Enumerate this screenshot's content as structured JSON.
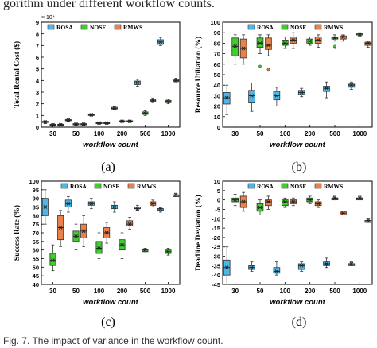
{
  "header_fragment": "gorithm under different workflow counts.",
  "caption": "Fig. 7. The impact of variance in the workflow count.",
  "colors": {
    "ROSA": "#4db8e8",
    "NOSF": "#3ecf2a",
    "RMWS": "#e8824a"
  },
  "chart_data": [
    {
      "type": "box",
      "panel_label": "(a)",
      "xlabel": "workflow count",
      "ylabel": "Total Rental Cost ($)",
      "multiplier": "× 10⁴",
      "categories": [
        "30",
        "50",
        "100",
        "200",
        "500",
        "1000"
      ],
      "ylim": [
        0,
        9
      ],
      "yticks": [
        0,
        1,
        2,
        3,
        4,
        5,
        6,
        7,
        8,
        9
      ],
      "legend": [
        "ROSA",
        "NOSF",
        "RMWS"
      ],
      "legend_position": "top-left",
      "series": [
        {
          "name": "ROSA",
          "boxes": [
            {
              "min": 0.3,
              "q1": 0.4,
              "med": 0.45,
              "q3": 0.5,
              "max": 0.55,
              "mean": 0.45
            },
            {
              "min": 0.5,
              "q1": 0.55,
              "med": 0.6,
              "q3": 0.65,
              "max": 0.7,
              "mean": 0.6
            },
            {
              "min": 0.95,
              "q1": 1.0,
              "med": 1.05,
              "q3": 1.1,
              "max": 1.15,
              "mean": 1.05
            },
            {
              "min": 1.5,
              "q1": 1.55,
              "med": 1.6,
              "q3": 1.7,
              "max": 1.75,
              "mean": 1.6
            },
            {
              "min": 3.5,
              "q1": 3.65,
              "med": 3.8,
              "q3": 3.95,
              "max": 4.1,
              "mean": 3.8
            },
            {
              "min": 7.0,
              "q1": 7.1,
              "med": 7.3,
              "q3": 7.5,
              "max": 7.7,
              "mean": 7.3
            }
          ]
        },
        {
          "name": "NOSF",
          "boxes": [
            {
              "min": 0.1,
              "q1": 0.15,
              "med": 0.2,
              "q3": 0.25,
              "max": 0.3,
              "mean": 0.2
            },
            {
              "min": 0.15,
              "q1": 0.2,
              "med": 0.25,
              "q3": 0.3,
              "max": 0.35,
              "mean": 0.25
            },
            {
              "min": 0.25,
              "q1": 0.3,
              "med": 0.35,
              "q3": 0.4,
              "max": 0.45,
              "mean": 0.35
            },
            {
              "min": 0.4,
              "q1": 0.45,
              "med": 0.5,
              "q3": 0.55,
              "max": 0.6,
              "mean": 0.5
            },
            {
              "min": 1.0,
              "q1": 1.1,
              "med": 1.2,
              "q3": 1.3,
              "max": 1.4,
              "mean": 1.2
            },
            {
              "min": 2.0,
              "q1": 2.1,
              "med": 2.2,
              "q3": 2.3,
              "max": 2.4,
              "mean": 2.2
            }
          ]
        },
        {
          "name": "RMWS",
          "boxes": [
            {
              "min": 0.1,
              "q1": 0.15,
              "med": 0.2,
              "q3": 0.25,
              "max": 0.3,
              "mean": 0.2
            },
            {
              "min": 0.15,
              "q1": 0.2,
              "med": 0.25,
              "q3": 0.3,
              "max": 0.35,
              "mean": 0.25
            },
            {
              "min": 0.25,
              "q1": 0.3,
              "med": 0.35,
              "q3": 0.4,
              "max": 0.45,
              "mean": 0.35
            },
            {
              "min": 0.4,
              "q1": 0.45,
              "med": 0.5,
              "q3": 0.55,
              "max": 0.6,
              "mean": 0.5
            },
            {
              "min": 2.1,
              "q1": 2.2,
              "med": 2.3,
              "q3": 2.4,
              "max": 2.5,
              "mean": 2.3
            },
            {
              "min": 3.8,
              "q1": 3.9,
              "med": 4.0,
              "q3": 4.1,
              "max": 4.2,
              "mean": 4.0
            }
          ]
        }
      ]
    },
    {
      "type": "box",
      "panel_label": "(b)",
      "xlabel": "workflow count",
      "ylabel": "Resource Utiliation (%)",
      "categories": [
        "30",
        "50",
        "100",
        "200",
        "500",
        "1000"
      ],
      "ylim": [
        0,
        100
      ],
      "yticks": [
        0,
        10,
        20,
        30,
        40,
        50,
        60,
        70,
        80,
        90,
        100
      ],
      "legend": [
        "ROSA",
        "NOSF",
        "RMWS"
      ],
      "legend_position": "top-center",
      "series": [
        {
          "name": "ROSA",
          "boxes": [
            {
              "min": 12,
              "q1": 22,
              "med": 28,
              "q3": 33,
              "max": 40,
              "mean": 28
            },
            {
              "min": 15,
              "q1": 23,
              "med": 30,
              "q3": 35,
              "max": 42,
              "mean": 30
            },
            {
              "min": 20,
              "q1": 26,
              "med": 30,
              "q3": 34,
              "max": 38,
              "mean": 30
            },
            {
              "min": 29,
              "q1": 31,
              "med": 33,
              "q3": 35,
              "max": 37,
              "mean": 33
            },
            {
              "min": 28,
              "q1": 34,
              "med": 37,
              "q3": 39,
              "max": 43,
              "mean": 37
            },
            {
              "min": 36,
              "q1": 38,
              "med": 40,
              "q3": 41,
              "max": 43,
              "mean": 40
            }
          ]
        },
        {
          "name": "NOSF",
          "boxes": [
            {
              "min": 60,
              "q1": 68,
              "med": 77,
              "q3": 85,
              "max": 88,
              "mean": 77
            },
            {
              "min": 70,
              "q1": 76,
              "med": 80,
              "q3": 85,
              "max": 88,
              "mean": 80,
              "outliers": [
                58
              ]
            },
            {
              "min": 75,
              "q1": 78,
              "med": 80,
              "q3": 83,
              "max": 86,
              "mean": 80
            },
            {
              "min": 78,
              "q1": 80,
              "med": 82,
              "q3": 84,
              "max": 86,
              "mean": 82
            },
            {
              "min": 82,
              "q1": 84,
              "med": 85,
              "q3": 86,
              "max": 88,
              "mean": 85,
              "outliers": [
                76,
                77
              ]
            },
            {
              "min": 87,
              "q1": 88,
              "med": 88,
              "q3": 89,
              "max": 90,
              "mean": 88
            }
          ]
        },
        {
          "name": "RMWS",
          "boxes": [
            {
              "min": 60,
              "q1": 66,
              "med": 75,
              "q3": 84,
              "max": 88,
              "mean": 75
            },
            {
              "min": 68,
              "q1": 74,
              "med": 78,
              "q3": 85,
              "max": 88,
              "mean": 78,
              "outliers": [
                55
              ]
            },
            {
              "min": 75,
              "q1": 80,
              "med": 83,
              "q3": 86,
              "max": 90,
              "mean": 83
            },
            {
              "min": 76,
              "q1": 80,
              "med": 83,
              "q3": 86,
              "max": 88,
              "mean": 83
            },
            {
              "min": 82,
              "q1": 84,
              "med": 86,
              "q3": 87,
              "max": 88,
              "mean": 86
            },
            {
              "min": 76,
              "q1": 78,
              "med": 80,
              "q3": 81,
              "max": 82,
              "mean": 80
            }
          ]
        }
      ]
    },
    {
      "type": "box",
      "panel_label": "(c)",
      "xlabel": "workflow count",
      "ylabel": "Success Rate (%)",
      "categories": [
        "30",
        "50",
        "100",
        "200",
        "500",
        "1000"
      ],
      "ylim": [
        40,
        100
      ],
      "yticks": [
        40,
        45,
        50,
        55,
        60,
        65,
        70,
        75,
        80,
        85,
        90,
        95,
        100
      ],
      "legend": [
        "ROSA",
        "NOSF",
        "RMWS"
      ],
      "legend_position": "top-center",
      "series": [
        {
          "name": "ROSA",
          "boxes": [
            {
              "min": 75,
              "q1": 80,
              "med": 85,
              "q3": 90,
              "max": 95,
              "mean": 85
            },
            {
              "min": 82,
              "q1": 85,
              "med": 87,
              "q3": 89,
              "max": 91,
              "mean": 87
            },
            {
              "min": 84,
              "q1": 86,
              "med": 87,
              "q3": 88,
              "max": 90,
              "mean": 87
            },
            {
              "min": 82,
              "q1": 84,
              "med": 85,
              "q3": 86,
              "max": 88,
              "mean": 85
            },
            {
              "min": 83,
              "q1": 84,
              "med": 84,
              "q3": 85,
              "max": 86,
              "mean": 84
            },
            {
              "min": 82,
              "q1": 83,
              "med": 84,
              "q3": 84,
              "max": 85,
              "mean": 84
            }
          ]
        },
        {
          "name": "NOSF",
          "boxes": [
            {
              "min": 48,
              "q1": 51,
              "med": 54,
              "q3": 58,
              "max": 63,
              "mean": 54
            },
            {
              "min": 60,
              "q1": 65,
              "med": 68,
              "q3": 71,
              "max": 75,
              "mean": 68
            },
            {
              "min": 55,
              "q1": 58,
              "med": 61,
              "q3": 65,
              "max": 70,
              "mean": 61
            },
            {
              "min": 55,
              "q1": 60,
              "med": 63,
              "q3": 66,
              "max": 70,
              "mean": 63
            },
            {
              "min": 59,
              "q1": 59,
              "med": 60,
              "q3": 60,
              "max": 61,
              "mean": 60
            },
            {
              "min": 57,
              "q1": 58,
              "med": 59,
              "q3": 60,
              "max": 61,
              "mean": 59
            }
          ]
        },
        {
          "name": "RMWS",
          "boxes": [
            {
              "min": 62,
              "q1": 66,
              "med": 73,
              "q3": 80,
              "max": 83,
              "mean": 73
            },
            {
              "min": 62,
              "q1": 67,
              "med": 71,
              "q3": 75,
              "max": 80,
              "mean": 71
            },
            {
              "min": 64,
              "q1": 67,
              "med": 70,
              "q3": 73,
              "max": 76,
              "mean": 70
            },
            {
              "min": 72,
              "q1": 74,
              "med": 75,
              "q3": 77,
              "max": 79,
              "mean": 75
            },
            {
              "min": 85,
              "q1": 86,
              "med": 87,
              "q3": 88,
              "max": 89,
              "mean": 87
            },
            {
              "min": 91,
              "q1": 91,
              "med": 92,
              "q3": 92,
              "max": 93,
              "mean": 92
            }
          ]
        }
      ]
    },
    {
      "type": "box",
      "panel_label": "(d)",
      "xlabel": "workflow count",
      "ylabel": "Deadline Deviation (%)",
      "categories": [
        "30",
        "50",
        "100",
        "200",
        "500",
        "1000"
      ],
      "ylim": [
        -45,
        10
      ],
      "yticks": [
        -45,
        -40,
        -35,
        -30,
        -25,
        -20,
        -15,
        -10,
        -5,
        0,
        5,
        10
      ],
      "legend": [
        "ROSA",
        "NOSF",
        "RMWS"
      ],
      "legend_position": "top-center",
      "series": [
        {
          "name": "ROSA",
          "boxes": [
            {
              "min": -45,
              "q1": -40,
              "med": -36,
              "q3": -32,
              "max": -25,
              "mean": -36
            },
            {
              "min": -38,
              "q1": -37,
              "med": -36,
              "q3": -35,
              "max": -33,
              "mean": -36
            },
            {
              "min": -40,
              "q1": -39,
              "med": -38,
              "q3": -36,
              "max": -33,
              "mean": -38
            },
            {
              "min": -38,
              "q1": -37,
              "med": -35,
              "q3": -34,
              "max": -33,
              "mean": -35
            },
            {
              "min": -36,
              "q1": -35,
              "med": -34,
              "q3": -33,
              "max": -31,
              "mean": -34
            },
            {
              "min": -35,
              "q1": -35,
              "med": -34,
              "q3": -34,
              "max": -33,
              "mean": -34
            }
          ]
        },
        {
          "name": "NOSF",
          "boxes": [
            {
              "min": -3,
              "q1": -1,
              "med": 0,
              "q3": 1,
              "max": 3,
              "mean": 0
            },
            {
              "min": -8,
              "q1": -6,
              "med": -4,
              "q3": -2,
              "max": 0,
              "mean": -4
            },
            {
              "min": -4,
              "q1": -3,
              "med": -1,
              "q3": 0,
              "max": 1,
              "mean": -1
            },
            {
              "min": -2,
              "q1": -1,
              "med": 0,
              "q3": 1,
              "max": 2,
              "mean": 0
            },
            {
              "min": 0,
              "q1": 0,
              "med": 1,
              "q3": 1,
              "max": 2,
              "mean": 1
            },
            {
              "min": 0,
              "q1": 0,
              "med": 1,
              "q3": 1,
              "max": 2,
              "mean": 1
            }
          ]
        },
        {
          "name": "RMWS",
          "boxes": [
            {
              "min": -6,
              "q1": -4,
              "med": -1,
              "q3": 2,
              "max": 4,
              "mean": -1
            },
            {
              "min": -5,
              "q1": -3,
              "med": -1,
              "q3": 0,
              "max": 2,
              "mean": -1
            },
            {
              "min": -3,
              "q1": -2,
              "med": -1,
              "q3": 0,
              "max": 1,
              "mean": -1
            },
            {
              "min": -4,
              "q1": -3,
              "med": -2,
              "q3": -1,
              "max": 0,
              "mean": -2
            },
            {
              "min": -8,
              "q1": -8,
              "med": -7,
              "q3": -6,
              "max": -6,
              "mean": -7
            },
            {
              "min": -12,
              "q1": -12,
              "med": -11,
              "q3": -11,
              "max": -10,
              "mean": -11
            }
          ]
        }
      ]
    }
  ]
}
